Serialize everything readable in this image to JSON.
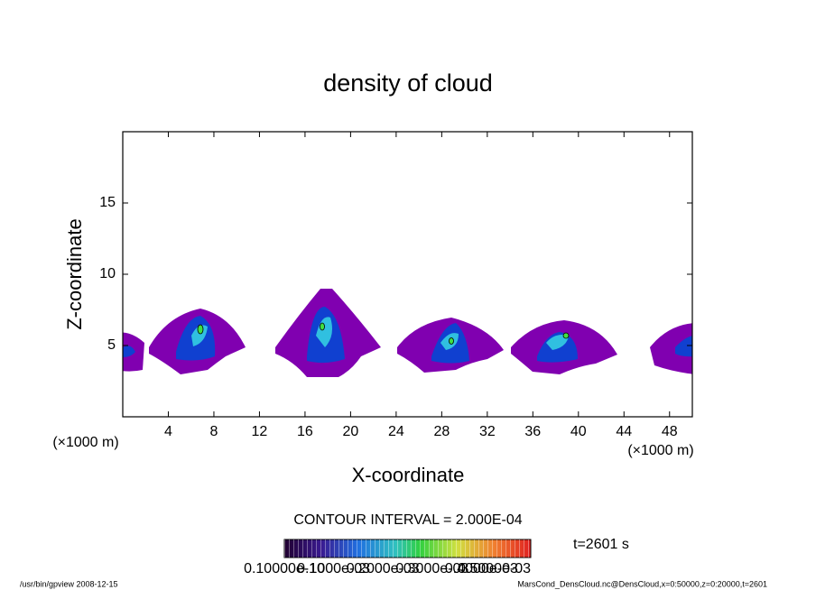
{
  "chart_data": {
    "type": "contour",
    "title": "density of cloud",
    "xlabel": "X-coordinate",
    "ylabel": "Z-coordinate",
    "x_unit": "(×1000 m)",
    "y_unit": "(×1000 m)",
    "xlim": [
      0,
      50
    ],
    "ylim": [
      0,
      20
    ],
    "xticks": [
      4,
      8,
      12,
      16,
      20,
      24,
      28,
      32,
      36,
      40,
      44,
      48
    ],
    "yticks": [
      5,
      10,
      15
    ],
    "contour_interval": "CONTOUR INTERVAL = 2.000E-04",
    "time_label": "t=2601 s",
    "colorbar_labels": [
      "0.10000e-10",
      "0.1000e-03",
      "0.2000e-03",
      "0.3000e-03",
      "0.4000e-03",
      "0.5000e-03"
    ],
    "footer_left": "/usr/bin/gpview  2008-12-15",
    "footer_right": "MarsCond_DensCloud.nc@DensCloud,x=0:50000,z=0:20000,t=2601"
  }
}
